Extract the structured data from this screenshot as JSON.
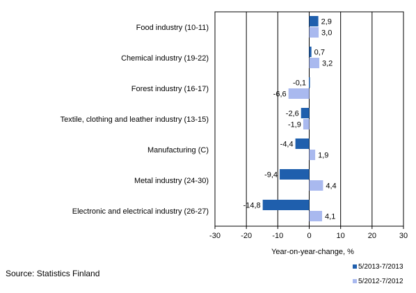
{
  "source": "Source: Statistics Finland",
  "chart_data": {
    "type": "bar",
    "orientation": "horizontal",
    "categories": [
      "Food industry (10-11)",
      "Chemical industry (19-22)",
      "Forest industry (16-17)",
      "Textile, clothing and leather industry (13-15)",
      "Manufacturing (C)",
      "Metal industry (24-30)",
      "Electronic and electrical industry (26-27)"
    ],
    "series": [
      {
        "name": "5/2013-7/2013",
        "color": "#1f5fad",
        "values": [
          2.9,
          0.7,
          -0.1,
          -2.6,
          -4.4,
          -9.4,
          -14.8
        ],
        "labels": [
          "2,9",
          "0,7",
          "-0,1",
          "-2,6",
          "-4,4",
          "-9,4",
          "-14,8"
        ]
      },
      {
        "name": "5/2012-7/2012",
        "color": "#a9b9ef",
        "values": [
          3.0,
          3.2,
          -6.6,
          -1.9,
          1.9,
          4.4,
          4.1
        ],
        "labels": [
          "3,0",
          "3,2",
          "-6,6",
          "-1,9",
          "1,9",
          "4,4",
          "4,1"
        ]
      }
    ],
    "xlabel": "Year-on-year-change, %",
    "xlim": [
      -30,
      30
    ],
    "xticks": [
      -30,
      -20,
      -10,
      0,
      10,
      20,
      30
    ],
    "xtick_labels": [
      "-30",
      "-20",
      "-10",
      "0",
      "10",
      "20",
      "30"
    ],
    "gridlines": "vertical",
    "legend_position": "bottom-right"
  }
}
